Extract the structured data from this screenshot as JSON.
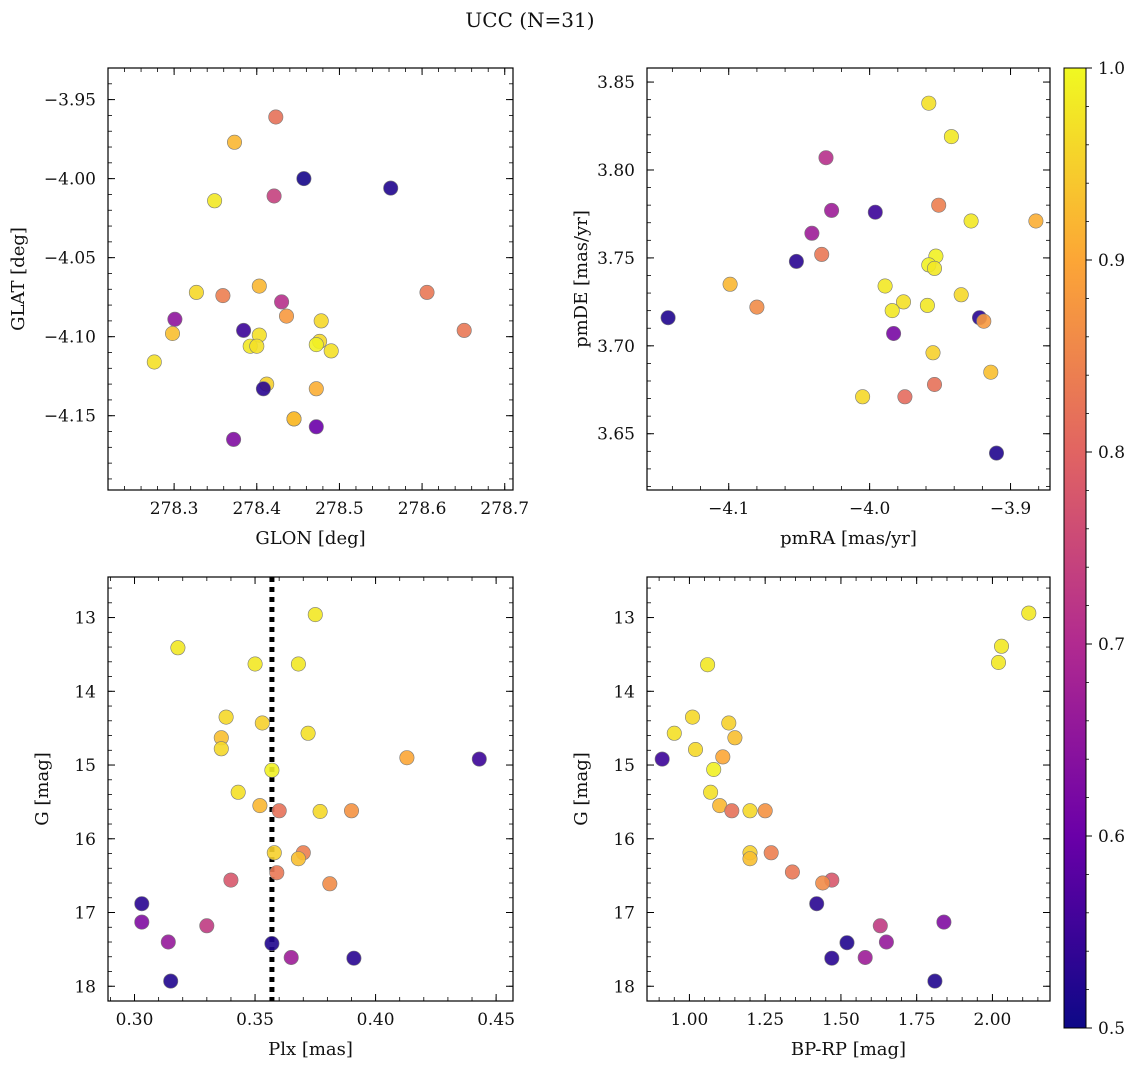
{
  "figure_title": "UCC (N=31)",
  "colorbar": {
    "min": 0.5,
    "max": 1.0,
    "ticks": [
      "0.5",
      "0.6",
      "0.7",
      "0.8",
      "0.9",
      "1.0"
    ],
    "colormap": [
      "#0d0887",
      "#6a00a8",
      "#b12a90",
      "#e16462",
      "#fca636",
      "#f0f921"
    ]
  },
  "chart_data": [
    {
      "type": "scatter",
      "id": "radec",
      "xlabel": "GLON [deg]",
      "ylabel": "GLAT [deg]",
      "xlim": [
        278.22,
        278.71
      ],
      "ylim": [
        -4.197,
        -3.93
      ],
      "y_inverted": false,
      "xticks": [
        "278.3",
        "278.4",
        "278.5",
        "278.6",
        "278.7"
      ],
      "yticks": [
        "-3.95",
        "-4.00",
        "-4.05",
        "-4.10",
        "-4.15"
      ],
      "x": [
        278.423,
        278.373,
        278.457,
        278.562,
        278.349,
        278.421,
        278.327,
        278.359,
        278.403,
        278.43,
        278.436,
        278.301,
        278.384,
        278.298,
        278.403,
        278.392,
        278.4,
        278.276,
        278.478,
        278.606,
        278.651,
        278.476,
        278.472,
        278.49,
        278.412,
        278.408,
        278.472,
        278.445,
        278.445,
        278.472,
        278.372
      ],
      "y": [
        -3.961,
        -3.977,
        -4.0,
        -4.006,
        -4.014,
        -4.011,
        -4.072,
        -4.074,
        -4.068,
        -4.078,
        -4.087,
        -4.089,
        -4.096,
        -4.098,
        -4.099,
        -4.106,
        -4.106,
        -4.116,
        -4.09,
        -4.072,
        -4.096,
        -4.103,
        -4.105,
        -4.109,
        -4.13,
        -4.133,
        -4.133,
        -4.152,
        -4.152,
        -4.157,
        -4.165
      ],
      "c": [
        0.82,
        0.92,
        0.51,
        0.52,
        0.98,
        0.74,
        0.96,
        0.84,
        0.92,
        0.71,
        0.88,
        0.65,
        0.55,
        0.93,
        0.97,
        0.98,
        0.97,
        0.97,
        0.96,
        0.83,
        0.83,
        0.96,
        0.99,
        0.97,
        0.95,
        0.53,
        0.91,
        0.88,
        0.93,
        0.6,
        0.63
      ]
    },
    {
      "type": "scatter",
      "id": "pm",
      "xlabel": "pmRA [mas/yr]",
      "ylabel": "pmDE [mas/yr]",
      "xlim": [
        -4.158,
        -3.872
      ],
      "ylim": [
        3.618,
        3.858
      ],
      "y_inverted": false,
      "xticks": [
        "-4.1",
        "-4.0",
        "-3.9"
      ],
      "yticks": [
        "3.65",
        "3.70",
        "3.75",
        "3.80",
        "3.85"
      ],
      "x": [
        -3.958,
        -3.942,
        -4.031,
        -3.951,
        -4.027,
        -3.996,
        -3.928,
        -3.882,
        -4.041,
        -4.034,
        -4.052,
        -3.953,
        -3.958,
        -4.099,
        -3.954,
        -4.08,
        -3.989,
        -3.976,
        -3.935,
        -3.984,
        -4.143,
        -3.922,
        -3.919,
        -3.959,
        -3.983,
        -3.955,
        -3.914,
        -3.954,
        -3.975,
        -4.005,
        -3.91
      ],
      "y": [
        3.838,
        3.819,
        3.807,
        3.78,
        3.777,
        3.776,
        3.771,
        3.771,
        3.764,
        3.752,
        3.748,
        3.751,
        3.746,
        3.735,
        3.744,
        3.722,
        3.734,
        3.725,
        3.729,
        3.72,
        3.716,
        3.716,
        3.714,
        3.723,
        3.707,
        3.696,
        3.685,
        3.678,
        3.671,
        3.671,
        3.639
      ],
      "c": [
        0.97,
        0.98,
        0.71,
        0.84,
        0.67,
        0.55,
        0.98,
        0.91,
        0.67,
        0.83,
        0.53,
        0.99,
        0.99,
        0.92,
        0.98,
        0.86,
        0.98,
        0.97,
        0.96,
        0.98,
        0.52,
        0.53,
        0.88,
        0.98,
        0.62,
        0.95,
        0.93,
        0.82,
        0.81,
        0.96,
        0.52
      ]
    },
    {
      "type": "scatter",
      "id": "plx_g",
      "xlabel": "Plx [mas]",
      "ylabel": "G [mag]",
      "xlim": [
        0.289,
        0.457
      ],
      "ylim": [
        18.2,
        12.45
      ],
      "y_inverted": true,
      "xticks": [
        "0.30",
        "0.35",
        "0.40",
        "0.45"
      ],
      "yticks": [
        "13",
        "14",
        "15",
        "16",
        "17",
        "18"
      ],
      "x": [
        0.375,
        0.318,
        0.35,
        0.368,
        0.338,
        0.353,
        0.372,
        0.336,
        0.336,
        0.413,
        0.443,
        0.357,
        0.343,
        0.352,
        0.36,
        0.377,
        0.39,
        0.358,
        0.37,
        0.368,
        0.359,
        0.34,
        0.381,
        0.303,
        0.303,
        0.33,
        0.314,
        0.357,
        0.365,
        0.391,
        0.315
      ],
      "y": [
        12.96,
        13.41,
        13.63,
        13.63,
        14.35,
        14.43,
        14.57,
        14.63,
        14.78,
        14.9,
        14.92,
        15.07,
        15.37,
        15.55,
        15.62,
        15.63,
        15.62,
        16.19,
        16.19,
        16.27,
        16.46,
        16.56,
        16.61,
        16.88,
        17.13,
        17.18,
        17.4,
        17.42,
        17.61,
        17.62,
        17.93
      ],
      "c": [
        0.98,
        0.98,
        0.98,
        0.98,
        0.96,
        0.95,
        0.97,
        0.93,
        0.96,
        0.9,
        0.55,
        0.99,
        0.97,
        0.92,
        0.82,
        0.96,
        0.87,
        0.95,
        0.84,
        0.93,
        0.83,
        0.78,
        0.86,
        0.53,
        0.63,
        0.73,
        0.66,
        0.52,
        0.67,
        0.53,
        0.52
      ],
      "vline": 0.357
    },
    {
      "type": "scatter",
      "id": "cmd",
      "xlabel": "BP-RP [mag]",
      "ylabel": "G [mag]",
      "xlim": [
        0.86,
        2.19
      ],
      "ylim": [
        18.2,
        12.45
      ],
      "y_inverted": true,
      "xticks": [
        "1.00",
        "1.25",
        "1.50",
        "1.75",
        "2.00"
      ],
      "yticks": [
        "13",
        "14",
        "15",
        "16",
        "17",
        "18"
      ],
      "x": [
        2.12,
        2.03,
        2.02,
        1.06,
        1.01,
        1.13,
        0.95,
        1.15,
        1.02,
        1.11,
        0.91,
        1.08,
        1.07,
        1.1,
        1.14,
        1.2,
        1.25,
        1.2,
        1.27,
        1.2,
        1.34,
        1.47,
        1.44,
        1.42,
        1.84,
        1.63,
        1.65,
        1.52,
        1.58,
        1.47,
        1.81
      ],
      "y": [
        12.94,
        13.39,
        13.61,
        13.64,
        14.35,
        14.43,
        14.57,
        14.63,
        14.79,
        14.89,
        14.92,
        15.06,
        15.37,
        15.55,
        15.62,
        15.62,
        15.62,
        16.19,
        16.19,
        16.27,
        16.45,
        16.56,
        16.6,
        16.88,
        17.13,
        17.18,
        17.4,
        17.41,
        17.61,
        17.62,
        17.93
      ],
      "c": [
        0.98,
        0.98,
        0.98,
        0.98,
        0.96,
        0.95,
        0.97,
        0.93,
        0.96,
        0.9,
        0.55,
        0.99,
        0.97,
        0.92,
        0.82,
        0.96,
        0.87,
        0.95,
        0.84,
        0.93,
        0.83,
        0.78,
        0.86,
        0.53,
        0.63,
        0.73,
        0.66,
        0.52,
        0.67,
        0.53,
        0.52
      ]
    }
  ]
}
